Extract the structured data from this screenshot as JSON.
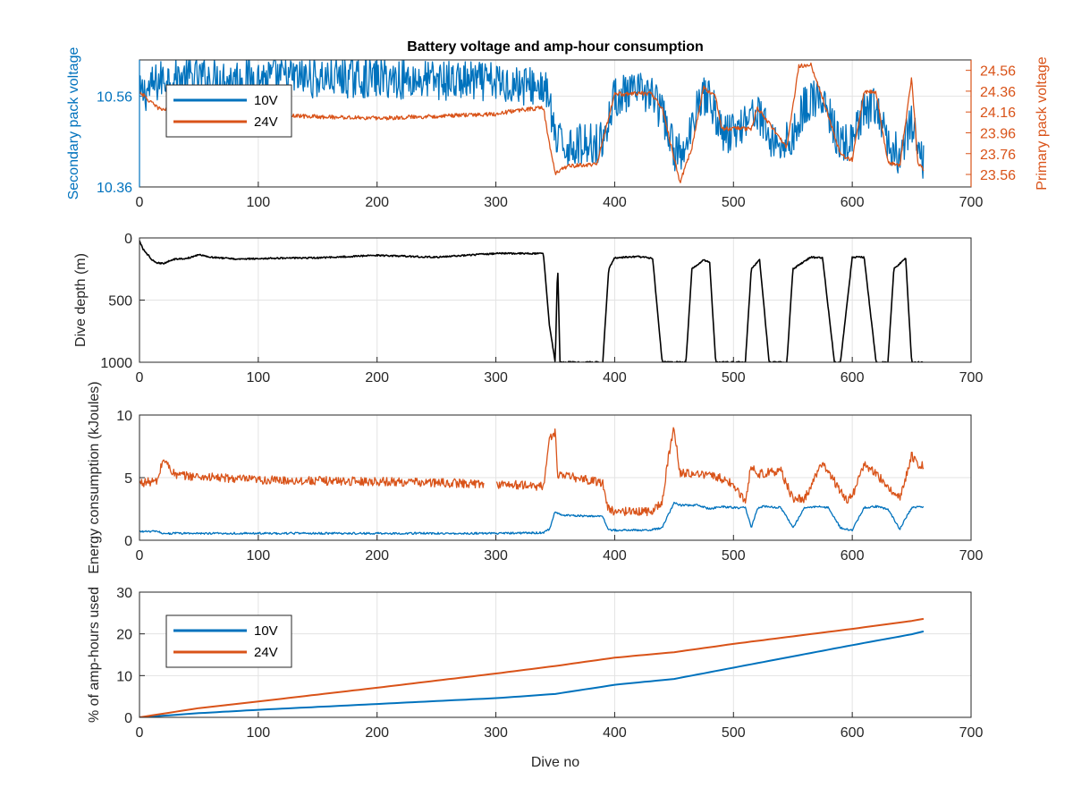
{
  "figure": {
    "title": "Battery voltage and amp-hour consumption",
    "xlabel": "Dive no",
    "colors": {
      "blue": "#0072BD",
      "orange": "#D95319",
      "black": "#000000",
      "grid": "#e3e3e3",
      "axis": "#262626"
    }
  },
  "chart_data": [
    {
      "type": "line",
      "id": "voltage",
      "title": "Battery voltage and amp-hour consumption",
      "xlabel": "",
      "ylabel_left": "Secondary pack voltage",
      "ylabel_right": "Primary pack voltage",
      "xlim": [
        0,
        700
      ],
      "xticks": [
        0,
        100,
        200,
        300,
        400,
        500,
        600,
        700
      ],
      "ylim_left": [
        10.36,
        10.64
      ],
      "yticks_left": [
        "10.36",
        "10.56"
      ],
      "ylim_right": [
        23.44,
        24.66
      ],
      "yticks_right": [
        "23.56",
        "23.76",
        "23.96",
        "24.16",
        "24.36",
        "24.56"
      ],
      "grid": true,
      "legend": {
        "placement": "upper-left",
        "entries": [
          "10V",
          "24V"
        ]
      },
      "series": [
        {
          "name": "10V",
          "axis": "left",
          "color": "#0072BD",
          "noise": 0.045,
          "x": [
            0,
            10,
            20,
            50,
            100,
            200,
            300,
            340,
            345,
            350,
            360,
            390,
            400,
            430,
            440,
            450,
            460,
            470,
            480,
            490,
            500,
            510,
            520,
            530,
            540,
            550,
            560,
            570,
            580,
            590,
            600,
            610,
            620,
            630,
            640,
            650,
            655,
            660
          ],
          "y": [
            10.56,
            10.58,
            10.6,
            10.6,
            10.6,
            10.6,
            10.59,
            10.58,
            10.55,
            10.46,
            10.45,
            10.46,
            10.56,
            10.57,
            10.52,
            10.44,
            10.43,
            10.56,
            10.56,
            10.48,
            10.48,
            10.51,
            10.53,
            10.47,
            10.45,
            10.47,
            10.54,
            10.56,
            10.52,
            10.45,
            10.46,
            10.52,
            10.54,
            10.45,
            10.43,
            10.5,
            10.44,
            10.42
          ]
        },
        {
          "name": "24V",
          "axis": "right",
          "color": "#D95319",
          "noise": 0.02,
          "x": [
            0,
            5,
            15,
            30,
            50,
            100,
            200,
            300,
            320,
            340,
            345,
            350,
            360,
            385,
            400,
            430,
            440,
            450,
            455,
            465,
            475,
            485,
            490,
            515,
            520,
            530,
            545,
            555,
            565,
            575,
            590,
            600,
            610,
            620,
            630,
            640,
            650,
            655,
            660
          ],
          "y": [
            24.36,
            24.3,
            24.2,
            24.16,
            24.15,
            24.13,
            24.1,
            24.14,
            24.18,
            24.2,
            23.85,
            23.57,
            23.64,
            23.66,
            24.33,
            24.34,
            24.2,
            23.72,
            23.48,
            23.82,
            24.4,
            24.3,
            24.0,
            24.0,
            24.2,
            24.05,
            23.82,
            24.6,
            24.62,
            24.3,
            23.75,
            23.7,
            24.35,
            24.35,
            23.68,
            23.64,
            24.5,
            23.68,
            23.6
          ]
        }
      ]
    },
    {
      "type": "line",
      "id": "depth",
      "ylabel": "Dive depth (m)",
      "xlim": [
        0,
        700
      ],
      "xticks": [
        0,
        100,
        200,
        300,
        400,
        500,
        600,
        700
      ],
      "ylim": [
        0,
        1000
      ],
      "y_reversed": true,
      "yticks": [
        "0",
        "500",
        "1000"
      ],
      "grid": true,
      "series": [
        {
          "name": "",
          "color": "#000000",
          "noise": 6,
          "x": [
            0,
            3,
            10,
            15,
            20,
            30,
            40,
            50,
            60,
            80,
            100,
            150,
            200,
            250,
            300,
            340,
            345,
            350,
            352,
            354,
            356,
            360,
            390,
            395,
            400,
            420,
            432,
            440,
            460,
            465,
            475,
            480,
            485,
            490,
            510,
            515,
            522,
            530,
            545,
            550,
            565,
            575,
            585,
            590,
            600,
            610,
            620,
            630,
            635,
            645,
            650,
            660
          ],
          "y": [
            20,
            90,
            170,
            200,
            205,
            170,
            165,
            135,
            155,
            170,
            165,
            160,
            140,
            155,
            125,
            125,
            700,
            1000,
            200,
            1000,
            1000,
            1000,
            1000,
            250,
            160,
            150,
            165,
            1000,
            1000,
            250,
            175,
            200,
            1000,
            1000,
            1000,
            250,
            175,
            1000,
            1000,
            250,
            155,
            160,
            1000,
            1000,
            155,
            155,
            1000,
            1000,
            250,
            165,
            1000,
            1000
          ]
        }
      ]
    },
    {
      "type": "line",
      "id": "energy",
      "ylabel": "Energy consumption (kJoules)",
      "xlim": [
        0,
        700
      ],
      "xticks": [
        0,
        100,
        200,
        300,
        400,
        500,
        600,
        700
      ],
      "ylim": [
        0,
        10
      ],
      "yticks": [
        "0",
        "5",
        "10"
      ],
      "grid": true,
      "series": [
        {
          "name": "24V",
          "color": "#D95319",
          "noise": 0.35,
          "x": [
            0,
            15,
            20,
            30,
            100,
            200,
            290,
            295,
            300,
            340,
            345,
            350,
            352,
            355,
            360,
            390,
            395,
            400,
            430,
            440,
            445,
            450,
            455,
            460,
            480,
            495,
            510,
            515,
            520,
            540,
            550,
            560,
            575,
            595,
            600,
            610,
            620,
            640,
            650,
            655,
            660
          ],
          "y": [
            4.6,
            4.7,
            6.5,
            5.2,
            4.8,
            4.7,
            4.5,
            null,
            4.5,
            4.3,
            8.0,
            8.7,
            5.3,
            5.2,
            5.1,
            4.6,
            2.4,
            2.3,
            2.3,
            3.0,
            6.5,
            9.0,
            5.3,
            5.4,
            5.2,
            4.8,
            3.2,
            6.0,
            5.3,
            5.5,
            3.3,
            3.3,
            6.2,
            3.2,
            3.5,
            6.1,
            5.3,
            3.3,
            6.8,
            6.1,
            5.9
          ]
        },
        {
          "name": "10V",
          "color": "#0072BD",
          "noise": 0.08,
          "x": [
            0,
            15,
            20,
            100,
            200,
            300,
            340,
            345,
            350,
            355,
            390,
            395,
            400,
            430,
            440,
            450,
            455,
            470,
            480,
            490,
            500,
            510,
            515,
            520,
            525,
            540,
            550,
            560,
            570,
            580,
            590,
            600,
            610,
            620,
            630,
            640,
            650,
            660
          ],
          "y": [
            0.7,
            0.7,
            0.55,
            0.55,
            0.55,
            0.55,
            0.6,
            0.9,
            2.3,
            2.0,
            1.9,
            0.8,
            0.8,
            0.8,
            1.0,
            3.0,
            2.8,
            2.8,
            2.5,
            2.7,
            2.6,
            2.6,
            1.0,
            2.5,
            2.7,
            2.6,
            1.0,
            2.6,
            2.7,
            2.6,
            1.0,
            0.8,
            2.6,
            2.7,
            2.5,
            0.9,
            2.6,
            2.7
          ]
        }
      ]
    },
    {
      "type": "line",
      "id": "amphours",
      "ylabel": "% of amp-hours used",
      "xlabel": "Dive no",
      "xlim": [
        0,
        700
      ],
      "xticks": [
        0,
        100,
        200,
        300,
        400,
        500,
        600,
        700
      ],
      "ylim": [
        0,
        30
      ],
      "yticks": [
        "0",
        "10",
        "20",
        "30"
      ],
      "grid": true,
      "legend": {
        "placement": "upper-left",
        "entries": [
          "10V",
          "24V"
        ]
      },
      "series": [
        {
          "name": "10V",
          "color": "#0072BD",
          "noise": 0,
          "x": [
            0,
            50,
            100,
            200,
            300,
            350,
            400,
            450,
            500,
            550,
            600,
            650,
            660
          ],
          "y": [
            0,
            1.0,
            1.8,
            3.2,
            4.6,
            5.6,
            7.8,
            9.2,
            11.9,
            14.6,
            17.3,
            19.9,
            20.6
          ]
        },
        {
          "name": "24V",
          "color": "#D95319",
          "noise": 0,
          "x": [
            0,
            50,
            100,
            200,
            300,
            350,
            400,
            450,
            500,
            550,
            600,
            650,
            660
          ],
          "y": [
            0,
            2.2,
            3.8,
            7.1,
            10.5,
            12.3,
            14.3,
            15.6,
            17.6,
            19.4,
            21.2,
            23.1,
            23.6
          ]
        }
      ]
    }
  ]
}
